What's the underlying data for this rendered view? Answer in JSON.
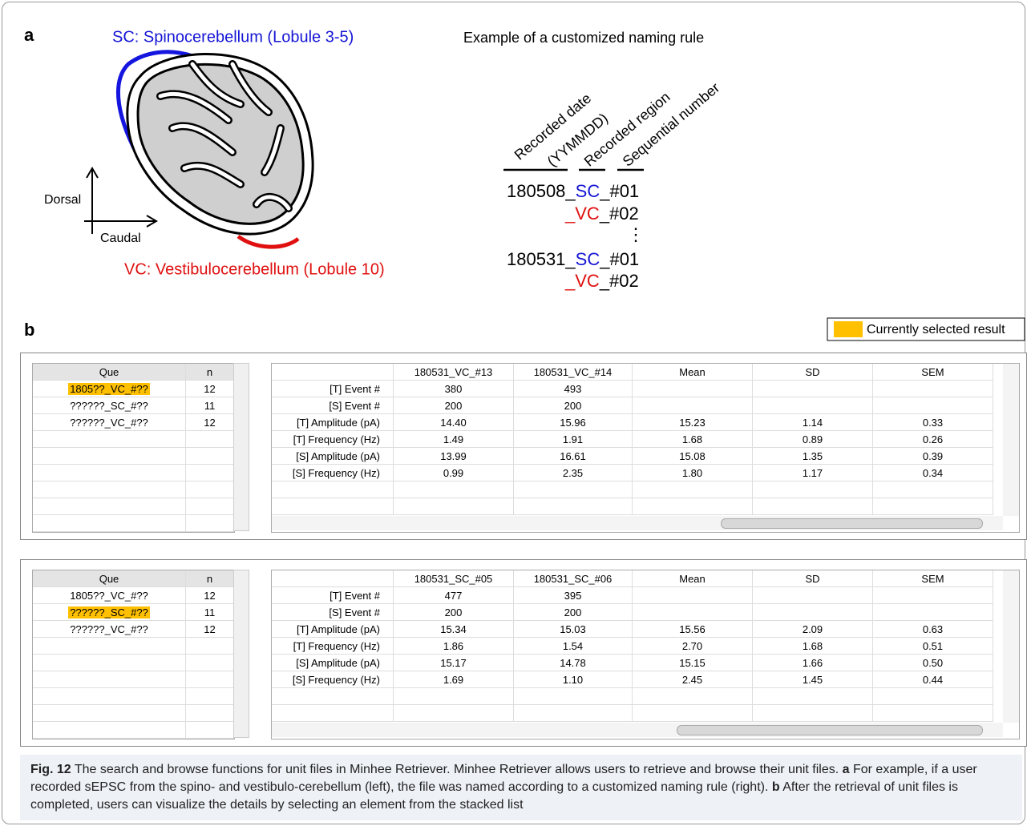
{
  "panel_a": {
    "label": "a",
    "sc_label": "SC: Spinocerebellum (Lobule 3-5)",
    "vc_label": "VC: Vestibulocerebellum (Lobule 10)",
    "dorsal": "Dorsal",
    "caudal": "Caudal",
    "rule_title": "Example of a customized naming rule",
    "rule_headers": [
      "Recorded date",
      "(YYMMDD)",
      "Recorded region",
      "Sequential number"
    ],
    "examples": [
      [
        "180508_",
        "SC",
        "_#01"
      ],
      [
        "_",
        "VC",
        "_#02"
      ],
      [
        "⋮",
        "",
        ""
      ],
      [
        "180531_",
        "SC",
        "_#01"
      ],
      [
        "_",
        "VC",
        "_#02"
      ]
    ]
  },
  "panel_b": {
    "label": "b",
    "legend": "Currently selected result",
    "tables": [
      {
        "que_header": "Que",
        "n_header": "n",
        "que_rows": [
          [
            "1805??_VC_#??",
            "12"
          ],
          [
            "??????_SC_#??",
            "11"
          ],
          [
            "??????_VC_#??",
            "12"
          ]
        ],
        "selected": 0,
        "columns": [
          "",
          "180531_VC_#13",
          "180531_VC_#14",
          "Mean",
          "SD",
          "SEM"
        ],
        "rows": [
          [
            "[T] Event #",
            "380",
            "493",
            "",
            "",
            ""
          ],
          [
            "[S] Event #",
            "200",
            "200",
            "",
            "",
            ""
          ],
          [
            "[T] Amplitude (pA)",
            "14.40",
            "15.96",
            "15.23",
            "1.14",
            "0.33"
          ],
          [
            "[T] Frequency (Hz)",
            "1.49",
            "1.91",
            "1.68",
            "0.89",
            "0.26"
          ],
          [
            "[S] Amplitude (pA)",
            "13.99",
            "16.61",
            "15.08",
            "1.35",
            "0.39"
          ],
          [
            "[S] Frequency (Hz)",
            "0.99",
            "2.35",
            "1.80",
            "1.17",
            "0.34"
          ]
        ]
      },
      {
        "que_header": "Que",
        "n_header": "n",
        "que_rows": [
          [
            "1805??_VC_#??",
            "12"
          ],
          [
            "??????_SC_#??",
            "11"
          ],
          [
            "??????_VC_#??",
            "12"
          ]
        ],
        "selected": 1,
        "columns": [
          "",
          "180531_SC_#05",
          "180531_SC_#06",
          "Mean",
          "SD",
          "SEM"
        ],
        "rows": [
          [
            "[T] Event #",
            "477",
            "395",
            "",
            "",
            ""
          ],
          [
            "[S] Event #",
            "200",
            "200",
            "",
            "",
            ""
          ],
          [
            "[T] Amplitude (pA)",
            "15.34",
            "15.03",
            "15.56",
            "2.09",
            "0.63"
          ],
          [
            "[T] Frequency (Hz)",
            "1.86",
            "1.54",
            "2.70",
            "1.68",
            "0.51"
          ],
          [
            "[S] Amplitude (pA)",
            "15.17",
            "14.78",
            "15.15",
            "1.66",
            "0.50"
          ],
          [
            "[S] Frequency (Hz)",
            "1.69",
            "1.10",
            "2.45",
            "1.45",
            "0.44"
          ]
        ]
      }
    ]
  },
  "caption": {
    "label": "Fig. 12",
    "text1": " The search and browse functions for unit files in Minhee Retriever. Minhee Retriever allows users to retrieve and browse their unit files. ",
    "a": "a",
    "text2": " For example, if a user recorded sEPSC from the spino- and vestibulo-cerebellum (left), the file was named according to a customized naming rule (right). ",
    "b": "b",
    "text3": " After the retrieval of unit files is completed, users can visualize the details by selecting an element from the stacked list"
  }
}
